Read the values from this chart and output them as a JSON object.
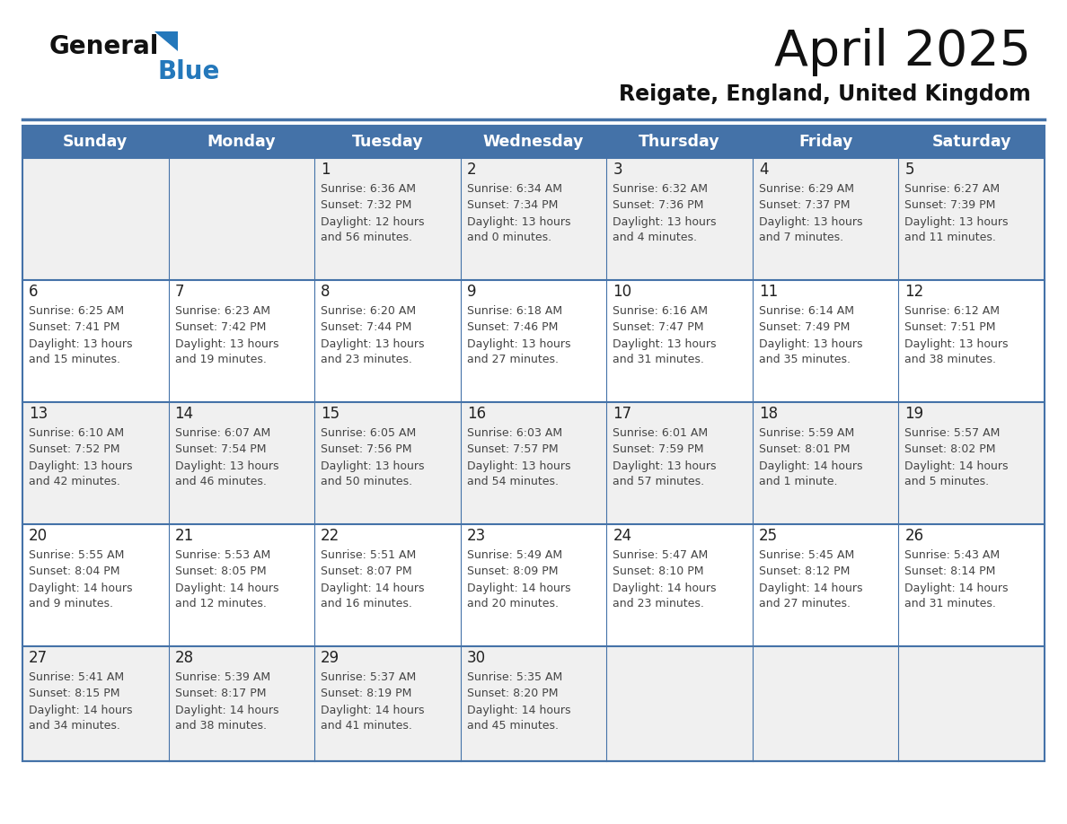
{
  "title": "April 2025",
  "subtitle": "Reigate, England, United Kingdom",
  "days_of_week": [
    "Sunday",
    "Monday",
    "Tuesday",
    "Wednesday",
    "Thursday",
    "Friday",
    "Saturday"
  ],
  "header_bg": "#4472A8",
  "header_text": "#FFFFFF",
  "row_bg_odd": "#F0F0F0",
  "row_bg_even": "#FFFFFF",
  "cell_border": "#4472A8",
  "day_number_color": "#222222",
  "info_text_color": "#444444",
  "logo_general_color": "#111111",
  "logo_blue_color": "#2478BB",
  "title_color": "#111111",
  "subtitle_color": "#111111",
  "weeks": [
    [
      {
        "day": "",
        "sunrise": "",
        "sunset": "",
        "daylight": ""
      },
      {
        "day": "",
        "sunrise": "",
        "sunset": "",
        "daylight": ""
      },
      {
        "day": "1",
        "sunrise": "Sunrise: 6:36 AM",
        "sunset": "Sunset: 7:32 PM",
        "daylight": "Daylight: 12 hours\nand 56 minutes."
      },
      {
        "day": "2",
        "sunrise": "Sunrise: 6:34 AM",
        "sunset": "Sunset: 7:34 PM",
        "daylight": "Daylight: 13 hours\nand 0 minutes."
      },
      {
        "day": "3",
        "sunrise": "Sunrise: 6:32 AM",
        "sunset": "Sunset: 7:36 PM",
        "daylight": "Daylight: 13 hours\nand 4 minutes."
      },
      {
        "day": "4",
        "sunrise": "Sunrise: 6:29 AM",
        "sunset": "Sunset: 7:37 PM",
        "daylight": "Daylight: 13 hours\nand 7 minutes."
      },
      {
        "day": "5",
        "sunrise": "Sunrise: 6:27 AM",
        "sunset": "Sunset: 7:39 PM",
        "daylight": "Daylight: 13 hours\nand 11 minutes."
      }
    ],
    [
      {
        "day": "6",
        "sunrise": "Sunrise: 6:25 AM",
        "sunset": "Sunset: 7:41 PM",
        "daylight": "Daylight: 13 hours\nand 15 minutes."
      },
      {
        "day": "7",
        "sunrise": "Sunrise: 6:23 AM",
        "sunset": "Sunset: 7:42 PM",
        "daylight": "Daylight: 13 hours\nand 19 minutes."
      },
      {
        "day": "8",
        "sunrise": "Sunrise: 6:20 AM",
        "sunset": "Sunset: 7:44 PM",
        "daylight": "Daylight: 13 hours\nand 23 minutes."
      },
      {
        "day": "9",
        "sunrise": "Sunrise: 6:18 AM",
        "sunset": "Sunset: 7:46 PM",
        "daylight": "Daylight: 13 hours\nand 27 minutes."
      },
      {
        "day": "10",
        "sunrise": "Sunrise: 6:16 AM",
        "sunset": "Sunset: 7:47 PM",
        "daylight": "Daylight: 13 hours\nand 31 minutes."
      },
      {
        "day": "11",
        "sunrise": "Sunrise: 6:14 AM",
        "sunset": "Sunset: 7:49 PM",
        "daylight": "Daylight: 13 hours\nand 35 minutes."
      },
      {
        "day": "12",
        "sunrise": "Sunrise: 6:12 AM",
        "sunset": "Sunset: 7:51 PM",
        "daylight": "Daylight: 13 hours\nand 38 minutes."
      }
    ],
    [
      {
        "day": "13",
        "sunrise": "Sunrise: 6:10 AM",
        "sunset": "Sunset: 7:52 PM",
        "daylight": "Daylight: 13 hours\nand 42 minutes."
      },
      {
        "day": "14",
        "sunrise": "Sunrise: 6:07 AM",
        "sunset": "Sunset: 7:54 PM",
        "daylight": "Daylight: 13 hours\nand 46 minutes."
      },
      {
        "day": "15",
        "sunrise": "Sunrise: 6:05 AM",
        "sunset": "Sunset: 7:56 PM",
        "daylight": "Daylight: 13 hours\nand 50 minutes."
      },
      {
        "day": "16",
        "sunrise": "Sunrise: 6:03 AM",
        "sunset": "Sunset: 7:57 PM",
        "daylight": "Daylight: 13 hours\nand 54 minutes."
      },
      {
        "day": "17",
        "sunrise": "Sunrise: 6:01 AM",
        "sunset": "Sunset: 7:59 PM",
        "daylight": "Daylight: 13 hours\nand 57 minutes."
      },
      {
        "day": "18",
        "sunrise": "Sunrise: 5:59 AM",
        "sunset": "Sunset: 8:01 PM",
        "daylight": "Daylight: 14 hours\nand 1 minute."
      },
      {
        "day": "19",
        "sunrise": "Sunrise: 5:57 AM",
        "sunset": "Sunset: 8:02 PM",
        "daylight": "Daylight: 14 hours\nand 5 minutes."
      }
    ],
    [
      {
        "day": "20",
        "sunrise": "Sunrise: 5:55 AM",
        "sunset": "Sunset: 8:04 PM",
        "daylight": "Daylight: 14 hours\nand 9 minutes."
      },
      {
        "day": "21",
        "sunrise": "Sunrise: 5:53 AM",
        "sunset": "Sunset: 8:05 PM",
        "daylight": "Daylight: 14 hours\nand 12 minutes."
      },
      {
        "day": "22",
        "sunrise": "Sunrise: 5:51 AM",
        "sunset": "Sunset: 8:07 PM",
        "daylight": "Daylight: 14 hours\nand 16 minutes."
      },
      {
        "day": "23",
        "sunrise": "Sunrise: 5:49 AM",
        "sunset": "Sunset: 8:09 PM",
        "daylight": "Daylight: 14 hours\nand 20 minutes."
      },
      {
        "day": "24",
        "sunrise": "Sunrise: 5:47 AM",
        "sunset": "Sunset: 8:10 PM",
        "daylight": "Daylight: 14 hours\nand 23 minutes."
      },
      {
        "day": "25",
        "sunrise": "Sunrise: 5:45 AM",
        "sunset": "Sunset: 8:12 PM",
        "daylight": "Daylight: 14 hours\nand 27 minutes."
      },
      {
        "day": "26",
        "sunrise": "Sunrise: 5:43 AM",
        "sunset": "Sunset: 8:14 PM",
        "daylight": "Daylight: 14 hours\nand 31 minutes."
      }
    ],
    [
      {
        "day": "27",
        "sunrise": "Sunrise: 5:41 AM",
        "sunset": "Sunset: 8:15 PM",
        "daylight": "Daylight: 14 hours\nand 34 minutes."
      },
      {
        "day": "28",
        "sunrise": "Sunrise: 5:39 AM",
        "sunset": "Sunset: 8:17 PM",
        "daylight": "Daylight: 14 hours\nand 38 minutes."
      },
      {
        "day": "29",
        "sunrise": "Sunrise: 5:37 AM",
        "sunset": "Sunset: 8:19 PM",
        "daylight": "Daylight: 14 hours\nand 41 minutes."
      },
      {
        "day": "30",
        "sunrise": "Sunrise: 5:35 AM",
        "sunset": "Sunset: 8:20 PM",
        "daylight": "Daylight: 14 hours\nand 45 minutes."
      },
      {
        "day": "",
        "sunrise": "",
        "sunset": "",
        "daylight": ""
      },
      {
        "day": "",
        "sunrise": "",
        "sunset": "",
        "daylight": ""
      },
      {
        "day": "",
        "sunrise": "",
        "sunset": "",
        "daylight": ""
      }
    ]
  ]
}
